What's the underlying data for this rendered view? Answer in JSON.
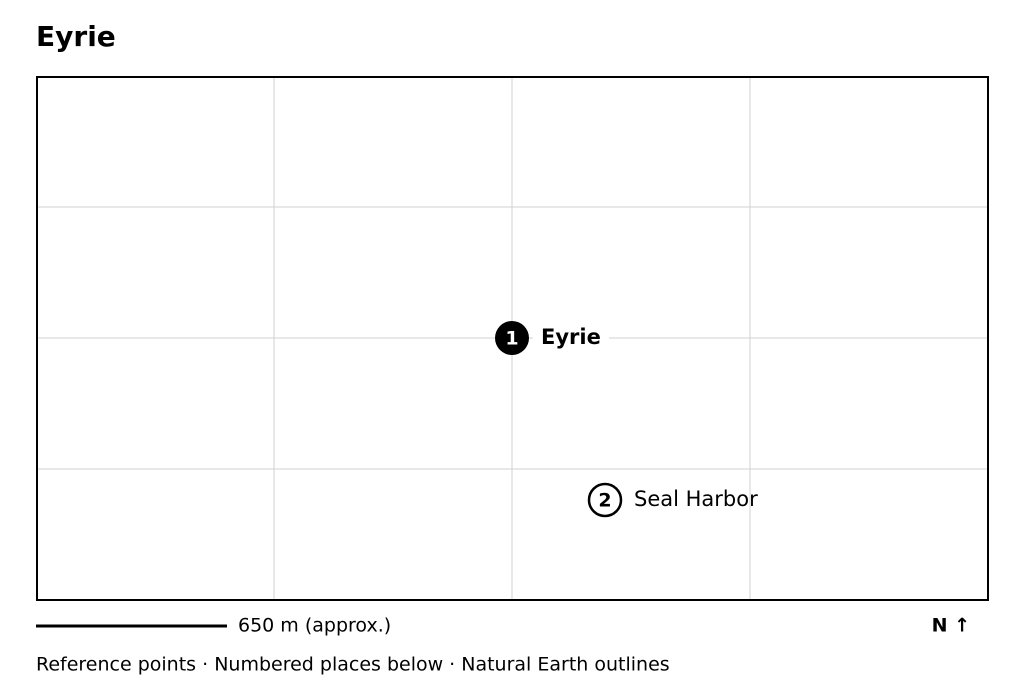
{
  "header": {
    "title": "Eyrie"
  },
  "places": [
    {
      "number": "1",
      "name": "Eyrie"
    },
    {
      "number": "2",
      "name": "Seal Harbor"
    }
  ],
  "scale": {
    "label": "650 m (approx.)"
  },
  "north": {
    "label": "N ↑"
  },
  "footer": {
    "text": "Reference points · Numbered places below · Natural Earth outlines"
  }
}
